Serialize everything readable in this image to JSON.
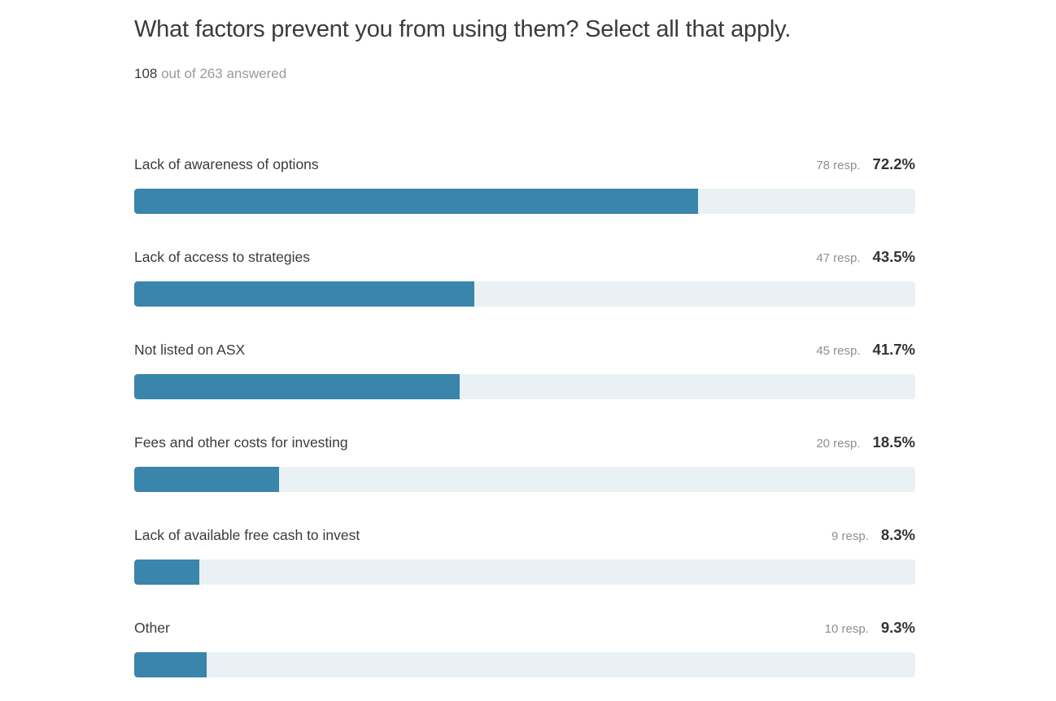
{
  "header": {
    "title": "What factors prevent you from using them? Select all that apply.",
    "answered_count": "108",
    "answered_suffix": " out of 263 answered"
  },
  "colors": {
    "bar_fill": "#3a85ab",
    "bar_track": "#eaf1f5",
    "text_primary": "#3b3b3b",
    "text_muted": "#8f8f8f"
  },
  "chart_data": {
    "type": "bar",
    "orientation": "horizontal",
    "title": "What factors prevent you from using them? Select all that apply.",
    "subtitle": "108 out of 263 answered",
    "answered": 108,
    "total_respondents": 263,
    "xlim": [
      0,
      100
    ],
    "grid": false,
    "legend": false,
    "categories": [
      "Lack of awareness of options",
      "Lack of access to strategies",
      "Not listed on ASX",
      "Fees and other costs for investing",
      "Lack of available free cash to invest",
      "Other"
    ],
    "rows": [
      {
        "label": "Lack of awareness of options",
        "responses": 78,
        "responses_label": "78 resp.",
        "percent": 72.2,
        "percent_label": "72.2%"
      },
      {
        "label": "Lack of access to strategies",
        "responses": 47,
        "responses_label": "47 resp.",
        "percent": 43.5,
        "percent_label": "43.5%"
      },
      {
        "label": "Not listed on ASX",
        "responses": 45,
        "responses_label": "45 resp.",
        "percent": 41.7,
        "percent_label": "41.7%"
      },
      {
        "label": "Fees and other costs for investing",
        "responses": 20,
        "responses_label": "20 resp.",
        "percent": 18.5,
        "percent_label": "18.5%"
      },
      {
        "label": "Lack of available free cash to invest",
        "responses": 9,
        "responses_label": "9 resp.",
        "percent": 8.3,
        "percent_label": "8.3%"
      },
      {
        "label": "Other",
        "responses": 10,
        "responses_label": "10 resp.",
        "percent": 9.3,
        "percent_label": "9.3%"
      }
    ]
  }
}
